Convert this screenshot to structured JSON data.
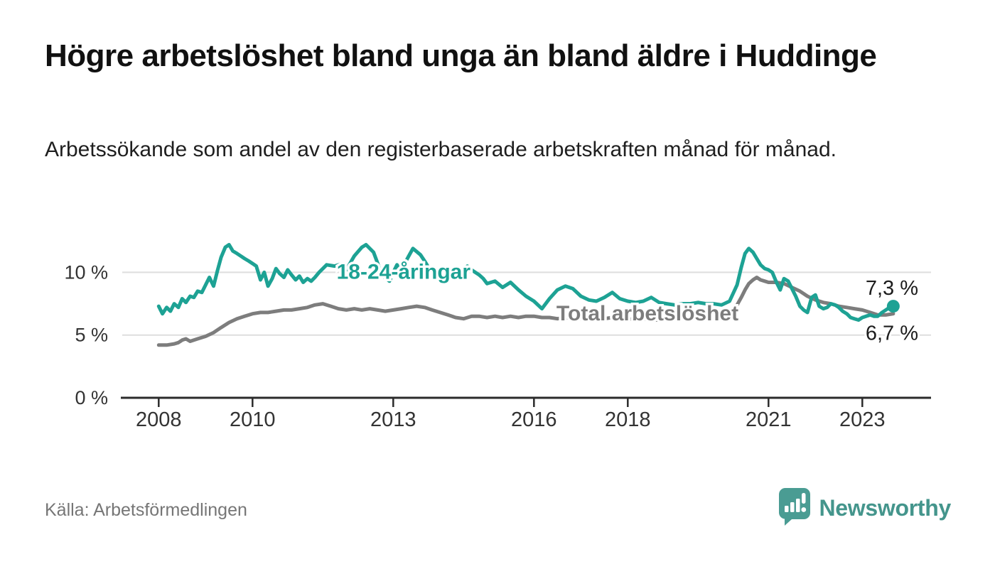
{
  "header": {
    "title": "Högre arbetslöshet bland unga än bland äldre i Huddinge",
    "subtitle": "Arbetssökande som andel av den registerbaserade arbetskraften månad för månad."
  },
  "footer": {
    "source": "Källa: Arbetsförmedlingen",
    "brand": "Newsworthy",
    "logo_icon": "newsworthy-speech-bubble-bar-chart-icon"
  },
  "colors": {
    "youth_line": "#1da294",
    "total_line": "#7d7d7d",
    "axis": "#2b2b2b",
    "grid": "#dedede",
    "tick_text": "#333333",
    "end_label_text": "#1c1c1c",
    "muted_text": "#767676",
    "brand_teal": "#4a9c93",
    "background": "#ffffff"
  },
  "chart_data": {
    "type": "line",
    "title": "",
    "xlabel": "",
    "ylabel": "",
    "y_unit": "%",
    "xlim": [
      2007.2,
      2024.4
    ],
    "ylim": [
      0,
      13
    ],
    "x_ticks": [
      2008,
      2010,
      2013,
      2016,
      2018,
      2021,
      2023
    ],
    "x_tick_labels": [
      "2008",
      "2010",
      "2013",
      "2016",
      "2018",
      "2021",
      "2023"
    ],
    "y_ticks": [
      0,
      5,
      10
    ],
    "y_tick_labels": [
      "0 %",
      "5 %",
      "10 %"
    ],
    "grid": "horizontal-at-5-and-10",
    "legend": "inline-labels-on-lines",
    "series": [
      {
        "name": "Total arbetslöshet",
        "color": "#7d7d7d",
        "end_label": "6,7 %",
        "end_label_position": "below",
        "end_dot": false,
        "x": [
          2008.0,
          2008.17,
          2008.33,
          2008.42,
          2008.5,
          2008.58,
          2008.67,
          2008.83,
          2009.0,
          2009.17,
          2009.33,
          2009.5,
          2009.67,
          2009.83,
          2010.0,
          2010.17,
          2010.33,
          2010.5,
          2010.67,
          2010.83,
          2011.0,
          2011.17,
          2011.33,
          2011.5,
          2011.67,
          2011.83,
          2012.0,
          2012.17,
          2012.33,
          2012.5,
          2012.67,
          2012.83,
          2013.0,
          2013.17,
          2013.33,
          2013.5,
          2013.67,
          2013.83,
          2014.0,
          2014.17,
          2014.33,
          2014.5,
          2014.67,
          2014.83,
          2015.0,
          2015.17,
          2015.33,
          2015.5,
          2015.67,
          2015.83,
          2016.0,
          2016.17,
          2016.33,
          2016.5,
          2016.67,
          2016.83,
          2017.0,
          2017.17,
          2017.33,
          2017.5,
          2017.67,
          2017.83,
          2018.0,
          2018.17,
          2018.33,
          2018.5,
          2018.67,
          2018.83,
          2019.0,
          2019.17,
          2019.33,
          2019.5,
          2019.67,
          2019.83,
          2020.0,
          2020.17,
          2020.33,
          2020.42,
          2020.5,
          2020.58,
          2020.67,
          2020.75,
          2020.83,
          2020.92,
          2021.0,
          2021.17,
          2021.33,
          2021.5,
          2021.67,
          2021.83,
          2022.0,
          2022.17,
          2022.33,
          2022.5,
          2022.67,
          2022.83,
          2023.0,
          2023.17,
          2023.33,
          2023.5,
          2023.66
        ],
        "y": [
          4.2,
          4.2,
          4.3,
          4.4,
          4.6,
          4.7,
          4.5,
          4.7,
          4.9,
          5.2,
          5.6,
          6.0,
          6.3,
          6.5,
          6.7,
          6.8,
          6.8,
          6.9,
          7.0,
          7.0,
          7.1,
          7.2,
          7.4,
          7.5,
          7.3,
          7.1,
          7.0,
          7.1,
          7.0,
          7.1,
          7.0,
          6.9,
          7.0,
          7.1,
          7.2,
          7.3,
          7.2,
          7.0,
          6.8,
          6.6,
          6.4,
          6.3,
          6.5,
          6.5,
          6.4,
          6.5,
          6.4,
          6.5,
          6.4,
          6.5,
          6.5,
          6.4,
          6.4,
          6.3,
          6.4,
          6.3,
          6.3,
          6.4,
          6.3,
          6.3,
          6.4,
          6.3,
          6.3,
          6.2,
          6.3,
          6.2,
          6.2,
          6.3,
          6.3,
          6.4,
          6.4,
          6.5,
          6.5,
          6.5,
          6.5,
          6.6,
          7.4,
          8.0,
          8.6,
          9.1,
          9.4,
          9.6,
          9.4,
          9.3,
          9.2,
          9.2,
          9.1,
          8.8,
          8.5,
          8.1,
          7.8,
          7.6,
          7.5,
          7.3,
          7.2,
          7.1,
          7.0,
          6.8,
          6.6,
          6.6,
          6.7
        ]
      },
      {
        "name": "18-24-åringar",
        "color": "#1da294",
        "end_label": "7,3 %",
        "end_label_position": "above",
        "end_dot": true,
        "x": [
          2008.0,
          2008.08,
          2008.17,
          2008.25,
          2008.33,
          2008.42,
          2008.5,
          2008.58,
          2008.67,
          2008.75,
          2008.83,
          2008.92,
          2009.0,
          2009.08,
          2009.17,
          2009.25,
          2009.33,
          2009.42,
          2009.5,
          2009.58,
          2009.67,
          2009.75,
          2009.83,
          2009.92,
          2010.0,
          2010.08,
          2010.17,
          2010.25,
          2010.33,
          2010.42,
          2010.5,
          2010.58,
          2010.67,
          2010.75,
          2010.83,
          2010.92,
          2011.0,
          2011.08,
          2011.17,
          2011.25,
          2011.33,
          2011.42,
          2011.58,
          2011.75,
          2011.92,
          2012.0,
          2012.17,
          2012.33,
          2012.42,
          2012.58,
          2012.67,
          2012.75,
          2012.92,
          2013.0,
          2013.08,
          2013.17,
          2013.33,
          2013.42,
          2013.58,
          2013.67,
          2013.75,
          2013.92,
          2014.0,
          2014.08,
          2014.17,
          2014.25,
          2014.42,
          2014.58,
          2014.67,
          2014.83,
          2014.92,
          2015.0,
          2015.17,
          2015.33,
          2015.5,
          2015.67,
          2015.83,
          2016.0,
          2016.17,
          2016.33,
          2016.5,
          2016.67,
          2016.83,
          2017.0,
          2017.17,
          2017.33,
          2017.5,
          2017.67,
          2017.83,
          2018.0,
          2018.17,
          2018.33,
          2018.5,
          2018.67,
          2018.83,
          2019.0,
          2019.17,
          2019.33,
          2019.5,
          2019.67,
          2019.83,
          2020.0,
          2020.17,
          2020.33,
          2020.42,
          2020.5,
          2020.58,
          2020.67,
          2020.75,
          2020.83,
          2020.92,
          2021.0,
          2021.08,
          2021.17,
          2021.25,
          2021.33,
          2021.42,
          2021.58,
          2021.67,
          2021.75,
          2021.83,
          2021.92,
          2022.0,
          2022.08,
          2022.17,
          2022.25,
          2022.33,
          2022.42,
          2022.5,
          2022.58,
          2022.67,
          2022.75,
          2022.83,
          2022.92,
          2023.0,
          2023.08,
          2023.17,
          2023.25,
          2023.33,
          2023.42,
          2023.5,
          2023.58,
          2023.66
        ],
        "y": [
          7.3,
          6.7,
          7.2,
          6.9,
          7.5,
          7.2,
          7.9,
          7.6,
          8.1,
          8.0,
          8.5,
          8.4,
          9.0,
          9.6,
          8.9,
          10.1,
          11.2,
          12.0,
          12.2,
          11.7,
          11.5,
          11.3,
          11.1,
          10.9,
          10.7,
          10.5,
          9.4,
          10.0,
          8.9,
          9.5,
          10.3,
          9.9,
          9.6,
          10.2,
          9.8,
          9.4,
          9.7,
          9.2,
          9.5,
          9.3,
          9.6,
          10.0,
          10.6,
          10.5,
          10.7,
          10.2,
          11.3,
          12.0,
          12.2,
          11.6,
          10.7,
          9.8,
          9.3,
          10.0,
          10.6,
          10.2,
          11.3,
          11.9,
          11.4,
          10.9,
          10.4,
          9.9,
          9.6,
          10.0,
          10.4,
          10.1,
          9.8,
          10.5,
          10.2,
          9.8,
          9.5,
          9.1,
          9.3,
          8.8,
          9.2,
          8.6,
          8.1,
          7.7,
          7.1,
          7.9,
          8.6,
          8.9,
          8.7,
          8.1,
          7.8,
          7.7,
          8.0,
          8.4,
          7.9,
          7.7,
          7.6,
          7.7,
          8.0,
          7.6,
          7.5,
          7.4,
          7.5,
          7.5,
          7.6,
          7.5,
          7.5,
          7.4,
          7.7,
          9.0,
          10.4,
          11.5,
          11.9,
          11.6,
          11.1,
          10.6,
          10.3,
          10.2,
          10.0,
          9.2,
          8.6,
          9.5,
          9.3,
          8.1,
          7.3,
          7.0,
          6.8,
          8.0,
          8.2,
          7.3,
          7.1,
          7.2,
          7.5,
          7.4,
          7.2,
          6.9,
          6.7,
          6.4,
          6.3,
          6.2,
          6.4,
          6.5,
          6.6,
          6.5,
          6.5,
          6.8,
          7.0,
          7.2,
          7.3
        ]
      }
    ],
    "annotations": [
      {
        "text": "18-24-åringar",
        "x": 2013.22,
        "y": 10.05,
        "color": "#1da294"
      },
      {
        "text": "Total arbetslöshet",
        "x": 2018.42,
        "y": 6.75,
        "color": "#7d7d7d"
      }
    ]
  }
}
